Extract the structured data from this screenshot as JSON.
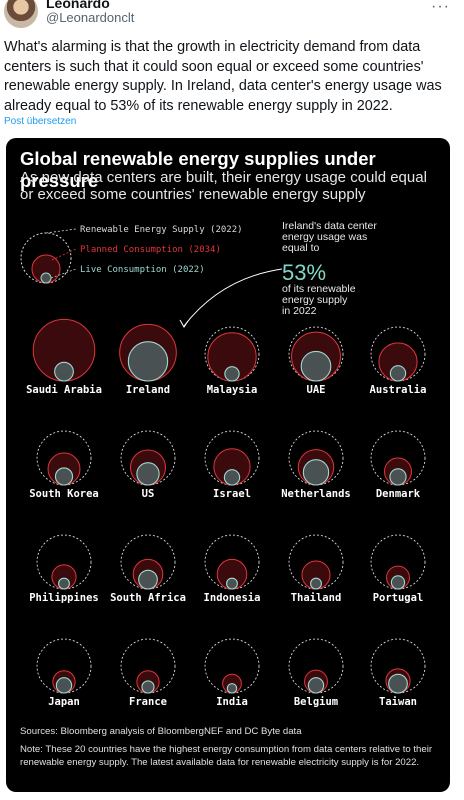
{
  "post": {
    "author_name": "Leonardo",
    "author_handle": "@Leonardonclt",
    "more_icon": "more-icon",
    "text": "What's alarming is that the growth in electricity demand from data centers is such that it could soon equal or exceed some countries' renewable energy supply. In Ireland, data center's energy usage was already equal to 53% of its renewable energy supply in 2022.",
    "translate_label": "Post übersetzen"
  },
  "card": {
    "title": "Global renewable energy supplies under pressure",
    "subtitle": "As new data centers are built, their energy usage could equal or exceed some countries' renewable energy supply",
    "sources": "Sources: Bloomberg analysis of BloombergNEF and DC Byte data",
    "note": "Note: These 20 countries have the highest energy consumption from data centers relative to their renewable energy supply. The latest available data for renewable electricity supply is for 2022."
  },
  "chart_data": {
    "type": "proportional-circles",
    "legend": [
      {
        "label": "Renewable Energy Supply (2022)",
        "color": "#d9d9d9",
        "style": "dashed"
      },
      {
        "label": "Planned Consumption (2034)",
        "color": "#e0353b",
        "style": "solid"
      },
      {
        "label": "Live Consumption (2022)",
        "color": "#9ed8d0",
        "style": "solid"
      }
    ],
    "annotation": {
      "lines": [
        "Ireland's data center",
        "energy usage was",
        "equal to"
      ],
      "value": "53%",
      "after": [
        "of its renewable",
        "energy supply",
        "in 2022"
      ]
    },
    "colors": {
      "supply": "#d9d9d9",
      "planned": "#e0353b",
      "planned_fill": "#3a0a0c",
      "live": "#9ed8d0",
      "live_fill": "#4a5152",
      "accent": "#7fd9c8"
    },
    "units": "relative to each country's renewable energy supply (supply = 1)",
    "countries": [
      {
        "name": "Saudi Arabia",
        "planned": 1.3,
        "live": 0.12
      },
      {
        "name": "Ireland",
        "planned": 1.1,
        "live": 0.53
      },
      {
        "name": "Malaysia",
        "planned": 0.8,
        "live": 0.07
      },
      {
        "name": "UAE",
        "planned": 0.82,
        "live": 0.3
      },
      {
        "name": "Australia",
        "planned": 0.5,
        "live": 0.08
      },
      {
        "name": "South Korea",
        "planned": 0.35,
        "live": 0.1
      },
      {
        "name": "US",
        "planned": 0.42,
        "live": 0.17
      },
      {
        "name": "Israel",
        "planned": 0.45,
        "live": 0.08
      },
      {
        "name": "Netherlands",
        "planned": 0.43,
        "live": 0.22
      },
      {
        "name": "Denmark",
        "planned": 0.25,
        "live": 0.09
      },
      {
        "name": "Philippines",
        "planned": 0.2,
        "live": 0.04
      },
      {
        "name": "South Africa",
        "planned": 0.3,
        "live": 0.12
      },
      {
        "name": "Indonesia",
        "planned": 0.3,
        "live": 0.04
      },
      {
        "name": "Thailand",
        "planned": 0.27,
        "live": 0.04
      },
      {
        "name": "Portugal",
        "planned": 0.18,
        "live": 0.06
      },
      {
        "name": "Japan",
        "planned": 0.17,
        "live": 0.08
      },
      {
        "name": "France",
        "planned": 0.17,
        "live": 0.05
      },
      {
        "name": "India",
        "planned": 0.12,
        "live": 0.03
      },
      {
        "name": "Belgium",
        "planned": 0.18,
        "live": 0.08
      },
      {
        "name": "Taiwan",
        "planned": 0.2,
        "live": 0.12
      }
    ]
  }
}
